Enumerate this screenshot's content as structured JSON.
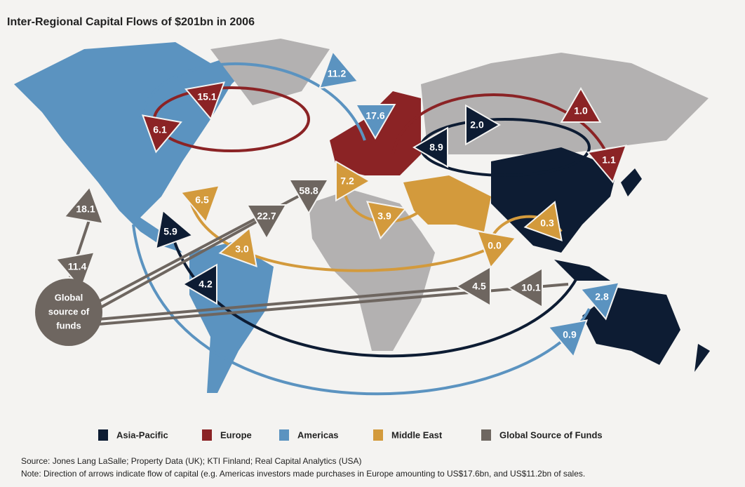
{
  "title": "Inter-Regional Capital Flows of $201bn in 2006",
  "flows": [
    {
      "label": "11.2",
      "color": "#5b93c0"
    },
    {
      "label": "15.1",
      "color": "#8b2325"
    },
    {
      "label": "6.1",
      "color": "#8b2325"
    },
    {
      "label": "17.6",
      "color": "#5b93c0"
    },
    {
      "label": "2.0",
      "color": "#0d1c33"
    },
    {
      "label": "8.9",
      "color": "#0d1c33"
    },
    {
      "label": "1.0",
      "color": "#8b2325"
    },
    {
      "label": "1.1",
      "color": "#8b2325"
    },
    {
      "label": "6.5",
      "color": "#d39a3c"
    },
    {
      "label": "58.8",
      "color": "#6e6660"
    },
    {
      "label": "7.2",
      "color": "#d39a3c"
    },
    {
      "label": "22.7",
      "color": "#6e6660"
    },
    {
      "label": "3.9",
      "color": "#d39a3c"
    },
    {
      "label": "5.9",
      "color": "#0d1c33"
    },
    {
      "label": "3.0",
      "color": "#d39a3c"
    },
    {
      "label": "0.0",
      "color": "#d39a3c"
    },
    {
      "label": "0.3",
      "color": "#d39a3c"
    },
    {
      "label": "18.1",
      "color": "#6e6660"
    },
    {
      "label": "11.4",
      "color": "#6e6660"
    },
    {
      "label": "4.2",
      "color": "#0d1c33"
    },
    {
      "label": "4.5",
      "color": "#6e6660"
    },
    {
      "label": "10.1",
      "color": "#6e6660"
    },
    {
      "label": "2.8",
      "color": "#5b93c0"
    },
    {
      "label": "0.9",
      "color": "#5b93c0"
    }
  ],
  "global_source": [
    "Global",
    "source of",
    "funds"
  ],
  "legend": [
    {
      "name": "Asia-Pacific",
      "color": "#0d1c33"
    },
    {
      "name": "Europe",
      "color": "#8b2325"
    },
    {
      "name": "Americas",
      "color": "#5b93c0"
    },
    {
      "name": "Middle East",
      "color": "#d39a3c"
    },
    {
      "name": "Global Source of Funds",
      "color": "#6e6660"
    }
  ],
  "source": "Source:  Jones Lang LaSalle; Property Data (UK); KTI Finland; Real Capital Analytics (USA)",
  "note": "Note: Direction of arrows indicate flow of capital (e.g. Americas investors made purchases in Europe amounting to US$17.6bn, and  US$11.2bn of sales."
}
